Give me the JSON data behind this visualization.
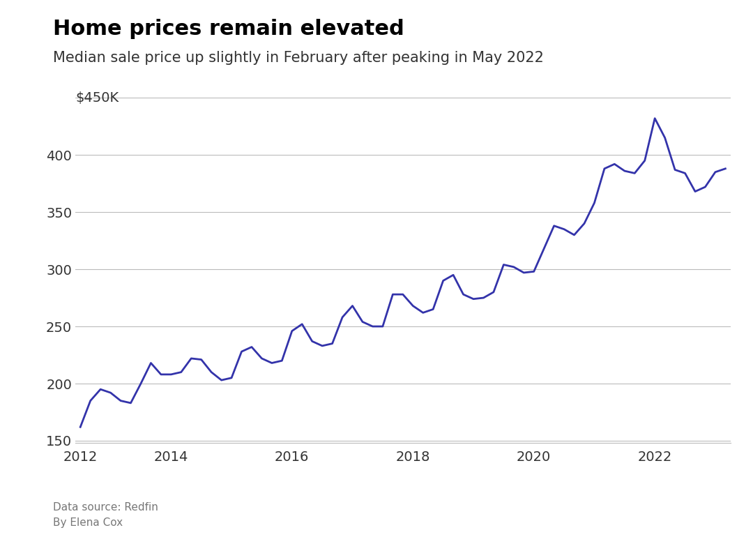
{
  "title": "Home prices remain elevated",
  "subtitle": "Median sale price up slightly in February after peaking in May 2022",
  "source": "Data source: Redfin\nBy Elena Cox",
  "line_color": "#3333aa",
  "background_color": "#ffffff",
  "ylim": [
    148,
    458
  ],
  "yticks": [
    150,
    200,
    250,
    300,
    350,
    400
  ],
  "ylabel_top": "$450K",
  "values": [
    162,
    185,
    195,
    192,
    185,
    183,
    200,
    218,
    208,
    208,
    210,
    222,
    221,
    210,
    203,
    205,
    228,
    232,
    222,
    218,
    220,
    246,
    252,
    237,
    233,
    235,
    258,
    268,
    254,
    250,
    250,
    278,
    278,
    268,
    262,
    265,
    290,
    295,
    278,
    274,
    275,
    280,
    304,
    302,
    297,
    298,
    318,
    338,
    335,
    330,
    340,
    358,
    388,
    392,
    386,
    384,
    395,
    432,
    415,
    387,
    384,
    368,
    372,
    385,
    388
  ],
  "n_points": 65,
  "xtick_labels": [
    "2012",
    "2014",
    "2016",
    "2018",
    "2020",
    "2022"
  ],
  "xtick_positions": [
    0,
    9,
    21,
    33,
    45,
    57
  ]
}
